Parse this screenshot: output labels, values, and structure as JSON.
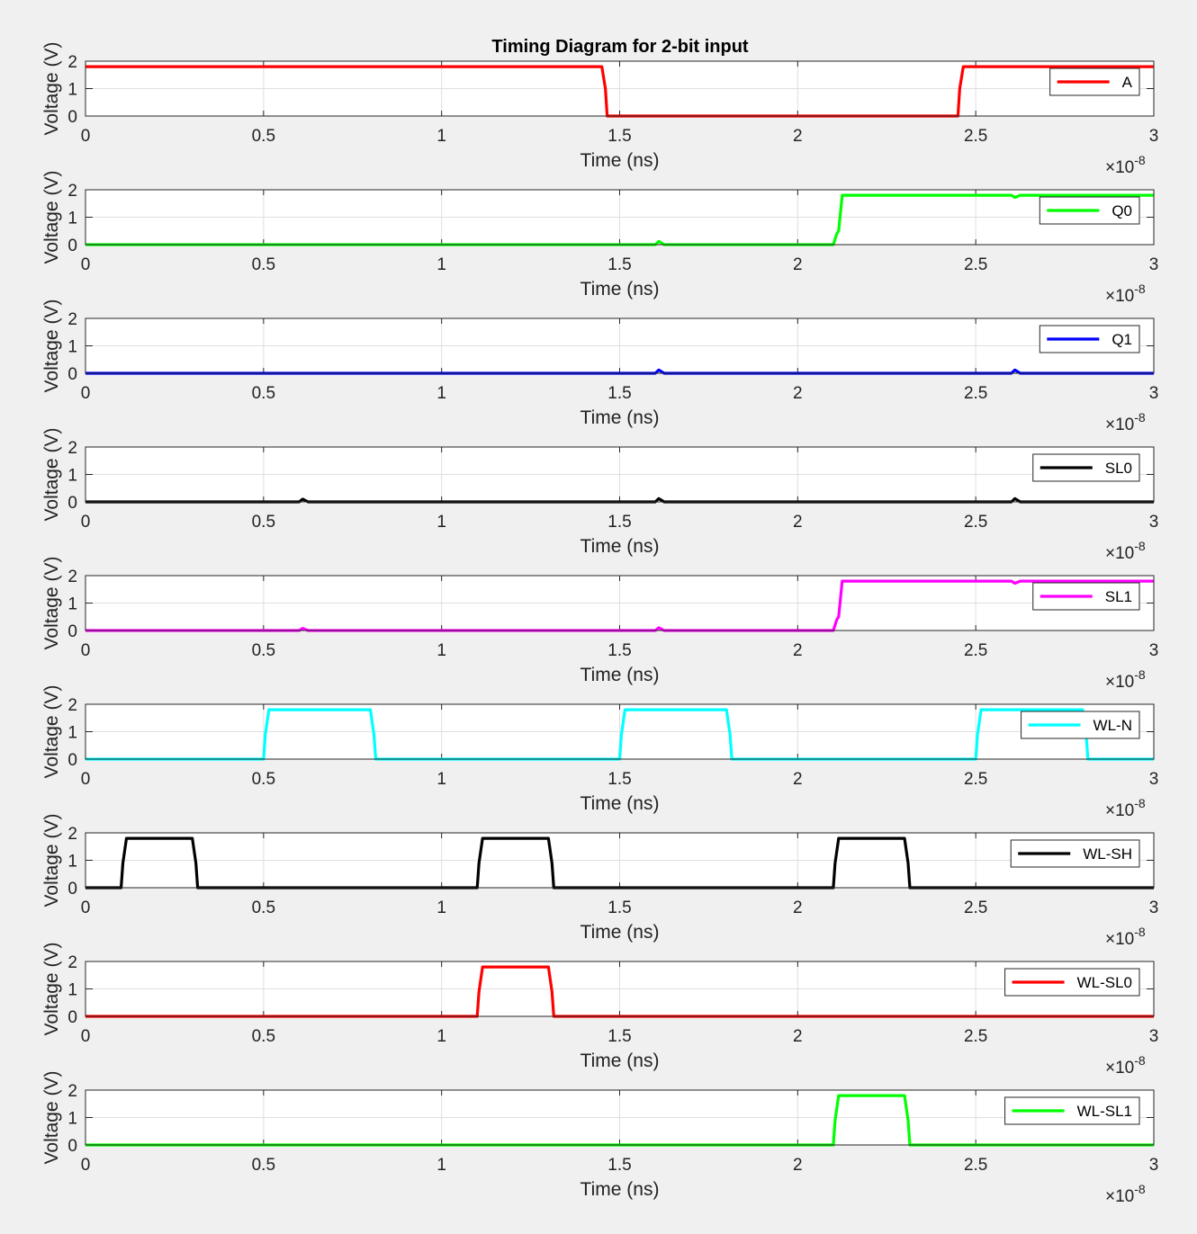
{
  "chart_data": {
    "type": "line",
    "title": "Timing Diagram for 2-bit input",
    "xlabel": "Time (ns)",
    "ylabel": "Voltage (V)",
    "x_exponent_base": "10",
    "x_exponent": "-8",
    "xlim": [
      0,
      3
    ],
    "ylim": [
      0,
      2
    ],
    "xticks": [
      "0",
      "0.5",
      "1",
      "1.5",
      "2",
      "2.5",
      "3"
    ],
    "yticks": [
      "0",
      "1",
      "2"
    ],
    "grid": true,
    "legend_position": "top-right",
    "panels": [
      {
        "name": "A",
        "color": "#ff0000",
        "x": [
          0,
          1.45,
          1.46,
          1.465,
          2.45,
          2.455,
          2.465,
          3
        ],
        "y": [
          1.8,
          1.8,
          1.0,
          0.0,
          0.0,
          1.0,
          1.8,
          1.8
        ]
      },
      {
        "name": "Q0",
        "color": "#00ff00",
        "x": [
          0,
          1.6,
          1.61,
          1.625,
          2.1,
          2.11,
          2.115,
          2.125,
          2.6,
          2.61,
          2.625,
          3
        ],
        "y": [
          0.0,
          0.0,
          0.12,
          0.0,
          0.0,
          0.4,
          0.5,
          1.8,
          1.8,
          1.72,
          1.8,
          1.8
        ]
      },
      {
        "name": "Q1",
        "color": "#0000ff",
        "x": [
          0,
          1.6,
          1.61,
          1.625,
          2.6,
          2.61,
          2.625,
          3
        ],
        "y": [
          0.0,
          0.0,
          0.12,
          0.0,
          0.0,
          0.12,
          0.0,
          0.0
        ]
      },
      {
        "name": "SL0",
        "color": "#000000",
        "x": [
          0,
          0.6,
          0.61,
          0.625,
          1.6,
          1.61,
          1.625,
          2.6,
          2.61,
          2.625,
          3
        ],
        "y": [
          0.0,
          0.0,
          0.1,
          0.0,
          0.0,
          0.12,
          0.0,
          0.0,
          0.12,
          0.0,
          0.0
        ]
      },
      {
        "name": "SL1",
        "color": "#ff00ff",
        "x": [
          0,
          0.6,
          0.61,
          0.625,
          1.6,
          1.61,
          1.625,
          2.1,
          2.11,
          2.115,
          2.125,
          2.6,
          2.61,
          2.625,
          3
        ],
        "y": [
          0.0,
          0.0,
          0.08,
          0.0,
          0.0,
          0.1,
          0.0,
          0.0,
          0.4,
          0.5,
          1.8,
          1.8,
          1.72,
          1.8,
          1.8
        ]
      },
      {
        "name": "WL-N",
        "color": "#00ffff",
        "x": [
          0,
          0.5,
          0.505,
          0.515,
          0.8,
          0.81,
          0.815,
          1.5,
          1.505,
          1.515,
          1.8,
          1.81,
          1.815,
          2.5,
          2.505,
          2.515,
          2.8,
          2.81,
          2.815,
          3
        ],
        "y": [
          0.0,
          0.0,
          0.9,
          1.8,
          1.8,
          0.9,
          0.0,
          0.0,
          0.9,
          1.8,
          1.8,
          0.9,
          0.0,
          0.0,
          0.9,
          1.8,
          1.8,
          0.9,
          0.0,
          0.0
        ]
      },
      {
        "name": "WL-SH",
        "color": "#000000",
        "x": [
          0,
          0.1,
          0.105,
          0.115,
          0.3,
          0.31,
          0.315,
          1.1,
          1.105,
          1.115,
          1.3,
          1.31,
          1.315,
          2.1,
          2.105,
          2.115,
          2.3,
          2.31,
          2.315,
          3
        ],
        "y": [
          0.0,
          0.0,
          0.9,
          1.8,
          1.8,
          0.9,
          0.0,
          0.0,
          0.9,
          1.8,
          1.8,
          0.9,
          0.0,
          0.0,
          0.9,
          1.8,
          1.8,
          0.9,
          0.0,
          0.0
        ]
      },
      {
        "name": "WL-SL0",
        "color": "#ff0000",
        "x": [
          0,
          1.1,
          1.105,
          1.115,
          1.3,
          1.31,
          1.315,
          3
        ],
        "y": [
          0.0,
          0.0,
          0.9,
          1.8,
          1.8,
          0.9,
          0.0,
          0.0
        ]
      },
      {
        "name": "WL-SL1",
        "color": "#00ff00",
        "x": [
          0,
          2.1,
          2.105,
          2.115,
          2.3,
          2.31,
          2.315,
          3
        ],
        "y": [
          0.0,
          0.0,
          0.9,
          1.8,
          1.8,
          0.9,
          0.0,
          0.0
        ]
      }
    ]
  }
}
